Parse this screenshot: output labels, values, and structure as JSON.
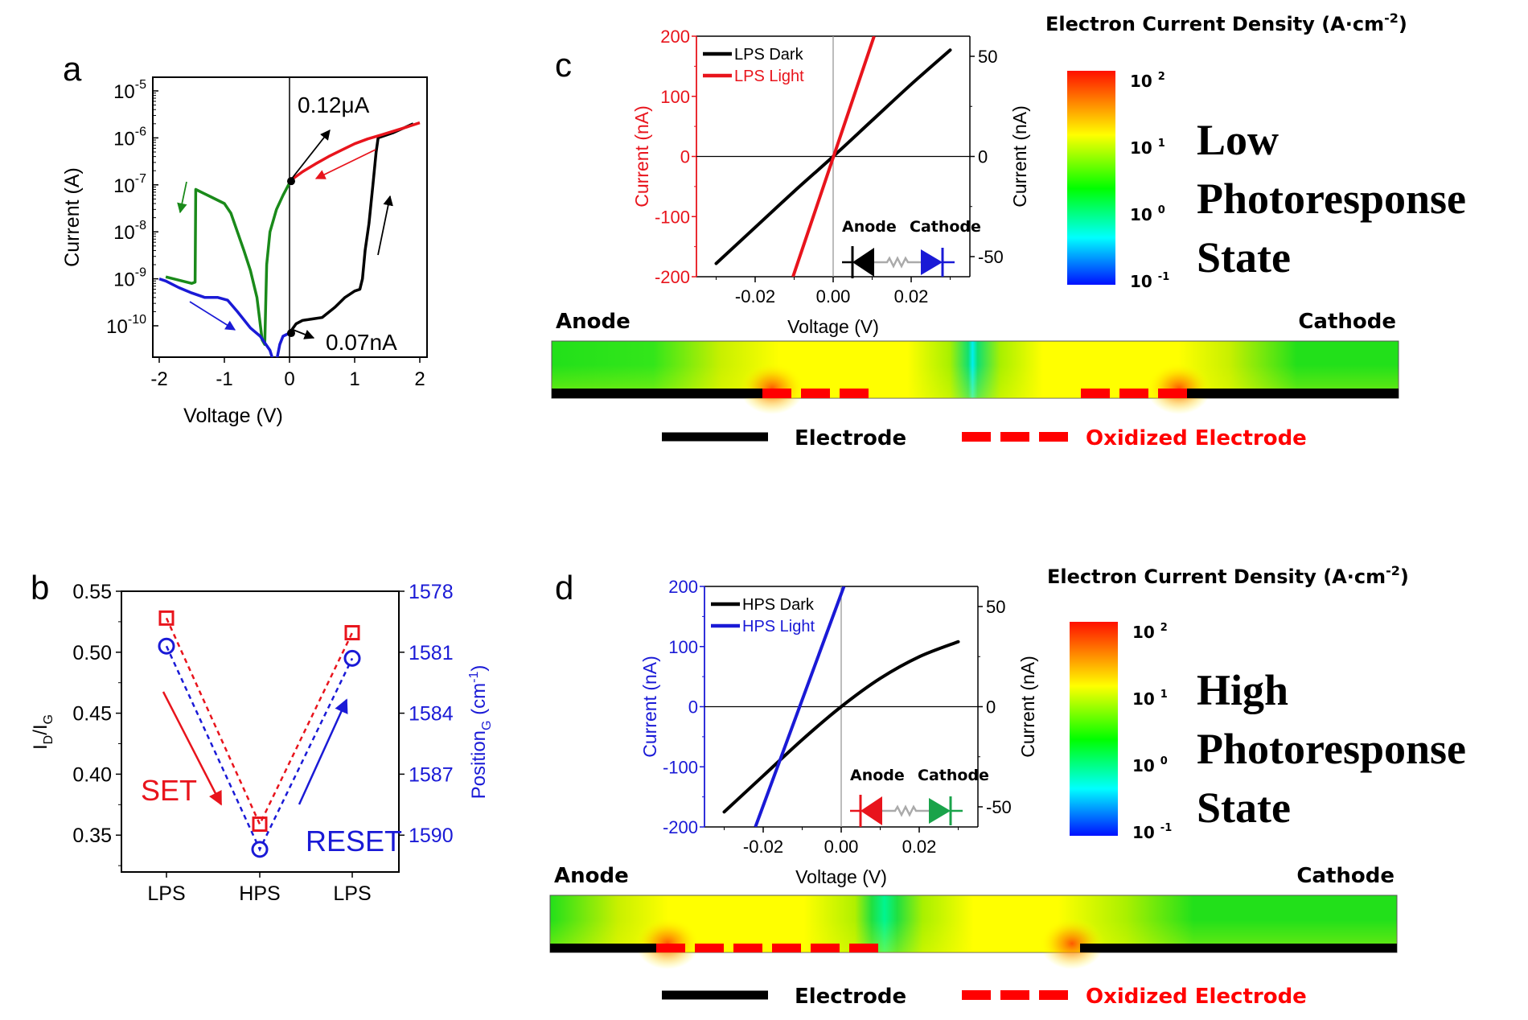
{
  "panel_labels": {
    "a": "a",
    "b": "b",
    "c": "c",
    "d": "d"
  },
  "colors": {
    "red": "#e8141c",
    "blue": "#1a1ad6",
    "green": "#1a8a1a",
    "black": "#000000",
    "diode_green": "#1aa34a"
  },
  "chart_data": [
    {
      "id": "a",
      "type": "line",
      "title": "",
      "xlabel": "Voltage (V)",
      "ylabel": "Current (A)",
      "yscale": "log",
      "xlim": [
        -2.1,
        2.1
      ],
      "ylim": [
        2e-11,
        3e-05
      ],
      "xticks": [
        "-2",
        "-1",
        "0",
        "1",
        "2"
      ],
      "xtick_values": [
        -2,
        -1,
        0,
        1,
        2
      ],
      "yticks": [
        {
          "base": "10",
          "exp": "-5",
          "value": 1e-05
        },
        {
          "base": "10",
          "exp": "-6",
          "value": 1e-06
        },
        {
          "base": "10",
          "exp": "-7",
          "value": 1e-07
        },
        {
          "base": "10",
          "exp": "-8",
          "value": 1e-08
        },
        {
          "base": "10",
          "exp": "-9",
          "value": 1e-09
        },
        {
          "base": "10",
          "exp": "-10",
          "value": 1e-10
        }
      ],
      "series": [
        {
          "name": "sweep-0-to-2 (black)",
          "color": "#000000",
          "x": [
            0.0,
            0.1,
            0.2,
            0.35,
            0.5,
            0.7,
            0.85,
            1.0,
            1.08,
            1.12,
            1.16,
            1.22,
            1.28,
            1.33,
            1.36,
            1.6,
            1.9
          ],
          "y": [
            7e-11,
            1.1e-10,
            1.3e-10,
            1.4e-10,
            1.5e-10,
            2.5e-10,
            4e-10,
            5.5e-10,
            6e-10,
            1e-09,
            4e-09,
            1.5e-08,
            1e-07,
            5e-07,
            1e-06,
            1.3e-06,
            2e-06
          ]
        },
        {
          "name": "sweep-2-to-0 (red)",
          "color": "#e8141c",
          "x": [
            2.0,
            1.8,
            1.6,
            1.4,
            1.2,
            1.0,
            0.8,
            0.6,
            0.4,
            0.2,
            0.0
          ],
          "y": [
            2.1e-06,
            1.7e-06,
            1.4e-06,
            1.15e-06,
            9.5e-07,
            7.5e-07,
            5.5e-07,
            4e-07,
            2.8e-07,
            1.9e-07,
            1.2e-07
          ]
        },
        {
          "name": "sweep-0-to-neg2 (green)",
          "color": "#1a8a1a",
          "x": [
            0.0,
            -0.1,
            -0.2,
            -0.3,
            -0.35,
            -0.38,
            -0.42,
            -0.5,
            -0.6,
            -0.7,
            -0.8,
            -0.9,
            -1.0,
            -1.2,
            -1.44,
            -1.45,
            -1.5,
            -1.9
          ],
          "y": [
            1.1e-07,
            6e-08,
            3e-08,
            1e-08,
            2e-09,
            4e-11,
            5e-11,
            4e-10,
            1.5e-09,
            4e-09,
            1e-08,
            2.5e-08,
            4e-08,
            5.5e-08,
            8e-08,
            8.5e-10,
            8e-10,
            1.1e-09
          ]
        },
        {
          "name": "sweep-neg2-to-0 (blue)",
          "color": "#1a1ad6",
          "x": [
            -2.0,
            -1.9,
            -1.7,
            -1.5,
            -1.3,
            -1.1,
            -0.95,
            -0.8,
            -0.6,
            -0.45,
            -0.3,
            -0.25,
            -0.2,
            -0.15,
            -0.1,
            0.0
          ],
          "y": [
            1e-09,
            9e-10,
            6.5e-10,
            5e-10,
            4e-10,
            4e-10,
            3.5e-10,
            2e-10,
            9e-11,
            6e-11,
            3e-11,
            1.5e-11,
            1.5e-11,
            4e-11,
            6e-11,
            7e-11
          ]
        }
      ],
      "annotations": [
        {
          "text": "0.12μA",
          "x": 0.0,
          "y": 1.2e-07
        },
        {
          "text": "0.07nA",
          "x": 0.0,
          "y": 7e-11
        }
      ],
      "points": [
        {
          "x": 0.0,
          "y": 1.2e-07
        },
        {
          "x": 0.0,
          "y": 7e-11
        }
      ]
    },
    {
      "id": "b",
      "type": "scatter",
      "title": "",
      "categories": [
        "LPS",
        "HPS",
        "LPS"
      ],
      "ylabel_left": {
        "main": "I",
        "sub1": "D",
        "mid": "/I",
        "sub2": "G"
      },
      "ylabel_right": {
        "main": "Position",
        "sub": "G",
        "unit": " (cm",
        "sup": "-1",
        "end": ")"
      },
      "ylim_left": [
        0.32,
        0.55
      ],
      "ylim_right": [
        1578,
        1592.2
      ],
      "yticks_left": [
        "0.55",
        "0.50",
        "0.45",
        "0.40",
        "0.35"
      ],
      "yticks_left_values": [
        0.55,
        0.5,
        0.45,
        0.4,
        0.35
      ],
      "yticks_right": [
        "1578",
        "1581",
        "1584",
        "1587",
        "1590"
      ],
      "yticks_right_values": [
        1578,
        1581,
        1584,
        1587,
        1590
      ],
      "series": [
        {
          "name": "ID/IG",
          "axis": "left",
          "marker": "square",
          "color": "#e8141c",
          "values": [
            0.528,
            0.359,
            0.516
          ]
        },
        {
          "name": "PositionG",
          "axis": "right",
          "marker": "circle",
          "color": "#1a1ad6",
          "values": [
            1580.7,
            1590.7,
            1581.3
          ]
        }
      ],
      "annotations": [
        {
          "text": "SET",
          "color": "#e8141c"
        },
        {
          "text": "RESET",
          "color": "#1a1ad6"
        }
      ]
    },
    {
      "id": "c",
      "type": "line",
      "xlabel": "Voltage (V)",
      "ylabel_left": "Current (nA)",
      "ylabel_right": "Current (nA)",
      "xlim": [
        -0.035,
        0.035
      ],
      "ylim_left": [
        -200,
        200
      ],
      "ylim_right": [
        -60,
        60
      ],
      "xticks": [
        "-0.02",
        "0.00",
        "0.02"
      ],
      "xtick_values": [
        -0.02,
        0.0,
        0.02
      ],
      "yticks_left": [
        "200",
        "100",
        "0",
        "-100",
        "-200"
      ],
      "yticks_left_values": [
        200,
        100,
        0,
        -100,
        -200
      ],
      "yticks_right": [
        "50",
        "0",
        "-50"
      ],
      "yticks_right_values": [
        50,
        0,
        -50
      ],
      "legend": [
        {
          "label": "LPS Dark",
          "color": "#000000"
        },
        {
          "label": "LPS Light",
          "color": "#e8141c"
        }
      ],
      "legend_position": "top-left",
      "series": [
        {
          "name": "LPS Dark",
          "axis": "left",
          "color": "#000000",
          "x": [
            -0.03,
            -0.02,
            -0.01,
            0.0,
            0.01,
            0.02,
            0.03
          ],
          "y": [
            -178,
            -118,
            -58,
            0,
            60,
            120,
            177
          ]
        },
        {
          "name": "LPS Light",
          "axis": "left",
          "color": "#e8141c",
          "x": [
            -0.0103,
            0.0105
          ],
          "y": [
            -200,
            200
          ]
        }
      ],
      "inset": {
        "anode_label": "Anode",
        "cathode_label": "Cathode",
        "anode_diode_color": "#000000",
        "cathode_diode_color": "#1a1ad6"
      }
    },
    {
      "id": "d",
      "type": "line",
      "xlabel": "Voltage (V)",
      "ylabel_left": "Current (nA)",
      "ylabel_right": "Current (nA)",
      "xlim": [
        -0.035,
        0.035
      ],
      "ylim_left": [
        -200,
        200
      ],
      "ylim_right": [
        -60,
        60
      ],
      "xticks": [
        "-0.02",
        "0.00",
        "0.02"
      ],
      "xtick_values": [
        -0.02,
        0.0,
        0.02
      ],
      "yticks_left": [
        "200",
        "100",
        "0",
        "-100",
        "-200"
      ],
      "yticks_left_values": [
        200,
        100,
        0,
        -100,
        -200
      ],
      "yticks_right": [
        "50",
        "0",
        "-50"
      ],
      "yticks_right_values": [
        50,
        0,
        -50
      ],
      "legend": [
        {
          "label": "HPS Dark",
          "color": "#000000"
        },
        {
          "label": "HPS Light",
          "color": "#1a1ad6"
        }
      ],
      "legend_position": "top-left",
      "series": [
        {
          "name": "HPS Dark",
          "axis": "left",
          "color": "#000000",
          "x": [
            -0.03,
            -0.02,
            -0.01,
            0.0,
            0.01,
            0.02,
            0.03
          ],
          "y": [
            -175,
            -115,
            -55,
            0,
            47,
            83,
            108
          ]
        },
        {
          "name": "HPS Light",
          "axis": "left",
          "color": "#1a1ad6",
          "x": [
            -0.022,
            0.0007
          ],
          "y": [
            -200,
            200
          ]
        }
      ],
      "inset": {
        "anode_label": "Anode",
        "cathode_label": "Cathode",
        "anode_diode_color": "#e8141c",
        "cathode_diode_color": "#1aa34a"
      }
    }
  ],
  "simulations": [
    {
      "id": "c",
      "anode_label": "Anode",
      "cathode_label": "Cathode",
      "colorbar_title": "Electron Current Density (A·cm",
      "colorbar_title_sup": "-2",
      "colorbar_title_end": ")",
      "colorbar_ticks": [
        {
          "base": "10",
          "exp": "2"
        },
        {
          "base": "10",
          "exp": "1"
        },
        {
          "base": "10",
          "exp": "0"
        },
        {
          "base": "10",
          "exp": "-1"
        }
      ],
      "state_lines": [
        "Low",
        "Photoresponse",
        "State"
      ],
      "legend_electrode": "Electrode",
      "legend_oxidized": "Oxidized Electrode",
      "left_oxidized_segments": 3,
      "right_oxidized_segments": 3
    },
    {
      "id": "d",
      "anode_label": "Anode",
      "cathode_label": "Cathode",
      "colorbar_title": "Electron Current Density (A·cm",
      "colorbar_title_sup": "-2",
      "colorbar_title_end": ")",
      "colorbar_ticks": [
        {
          "base": "10",
          "exp": "2"
        },
        {
          "base": "10",
          "exp": "1"
        },
        {
          "base": "10",
          "exp": "0"
        },
        {
          "base": "10",
          "exp": "-1"
        }
      ],
      "state_lines": [
        "High",
        "Photoresponse",
        "State"
      ],
      "legend_electrode": "Electrode",
      "legend_oxidized": "Oxidized Electrode",
      "left_oxidized_segments": 6,
      "right_oxidized_segments": 0
    }
  ]
}
